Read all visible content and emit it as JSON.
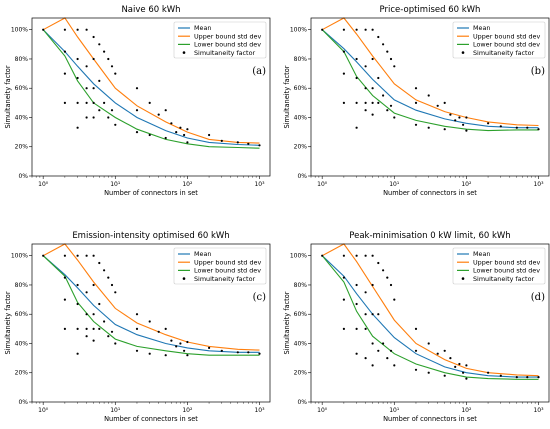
{
  "chart_data": [
    {
      "type": "line",
      "title": "Naive 60 kWh",
      "panel_label": "(a)",
      "xlabel": "Number of connectors in set",
      "ylabel": "Simultaneity factor",
      "xscale": "log",
      "xlim": [
        0.7,
        1400
      ],
      "ylim": [
        0,
        1.08
      ],
      "x_ticks": [
        1,
        10,
        100,
        1000
      ],
      "x_tick_labels": [
        "10⁰",
        "10¹",
        "10²",
        "10³"
      ],
      "y_ticks": [
        0,
        0.2,
        0.4,
        0.6,
        0.8,
        1.0
      ],
      "y_tick_labels": [
        "0%",
        "20%",
        "40%",
        "60%",
        "80%",
        "100%"
      ],
      "legend_position": "top-right",
      "series": [
        {
          "name": "Mean",
          "color": "#1f77b4",
          "x": [
            1,
            2,
            3,
            5,
            10,
            20,
            50,
            100,
            200,
            500,
            1000
          ],
          "y": [
            1.0,
            0.85,
            0.75,
            0.63,
            0.5,
            0.4,
            0.31,
            0.26,
            0.23,
            0.215,
            0.21
          ]
        },
        {
          "name": "Upper bound std dev",
          "color": "#ff7f0e",
          "x": [
            1,
            2,
            3,
            5,
            10,
            20,
            50,
            100,
            200,
            500,
            1000
          ],
          "y": [
            1.0,
            1.08,
            0.95,
            0.8,
            0.6,
            0.48,
            0.37,
            0.3,
            0.25,
            0.23,
            0.225
          ]
        },
        {
          "name": "Lower bound std dev",
          "color": "#2ca02c",
          "x": [
            1,
            2,
            3,
            5,
            10,
            20,
            50,
            100,
            200,
            500,
            1000
          ],
          "y": [
            1.0,
            0.82,
            0.65,
            0.5,
            0.4,
            0.32,
            0.25,
            0.22,
            0.2,
            0.195,
            0.19
          ]
        },
        {
          "name": "Simultaneity factor",
          "type": "scatter",
          "color": "#000000",
          "x": [
            1,
            2,
            2,
            2,
            2,
            3,
            3,
            3,
            3,
            3,
            4,
            4,
            4,
            4,
            4,
            5,
            5,
            5,
            5,
            5,
            6,
            6,
            6,
            7,
            7,
            8,
            8,
            9,
            9,
            10,
            10,
            20,
            20,
            20,
            30,
            30,
            40,
            50,
            50,
            60,
            70,
            80,
            90,
            100,
            100,
            200,
            300,
            500,
            700,
            1000
          ],
          "y": [
            1.0,
            1.0,
            0.85,
            0.7,
            0.5,
            1.0,
            0.8,
            0.67,
            0.5,
            0.33,
            1.0,
            0.75,
            0.6,
            0.5,
            0.4,
            0.95,
            0.8,
            0.6,
            0.5,
            0.4,
            0.9,
            0.65,
            0.45,
            0.85,
            0.5,
            0.8,
            0.4,
            0.75,
            0.45,
            0.7,
            0.35,
            0.6,
            0.45,
            0.3,
            0.5,
            0.28,
            0.42,
            0.45,
            0.26,
            0.36,
            0.3,
            0.33,
            0.28,
            0.32,
            0.23,
            0.28,
            0.24,
            0.23,
            0.22,
            0.21
          ]
        }
      ]
    },
    {
      "type": "line",
      "title": "Price-optimised 60 kWh",
      "panel_label": "(b)",
      "xlabel": "Number of connectors in set",
      "ylabel": "Simultaneity factor",
      "xscale": "log",
      "xlim": [
        0.7,
        1400
      ],
      "ylim": [
        0,
        1.08
      ],
      "x_ticks": [
        1,
        10,
        100,
        1000
      ],
      "x_tick_labels": [
        "10⁰",
        "10¹",
        "10²",
        "10³"
      ],
      "y_ticks": [
        0,
        0.2,
        0.4,
        0.6,
        0.8,
        1.0
      ],
      "y_tick_labels": [
        "0%",
        "20%",
        "40%",
        "60%",
        "80%",
        "100%"
      ],
      "legend_position": "top-right",
      "series": [
        {
          "name": "Mean",
          "color": "#1f77b4",
          "x": [
            1,
            2,
            3,
            5,
            10,
            20,
            50,
            100,
            200,
            500,
            1000
          ],
          "y": [
            1.0,
            0.87,
            0.78,
            0.66,
            0.52,
            0.45,
            0.39,
            0.36,
            0.34,
            0.33,
            0.33
          ]
        },
        {
          "name": "Upper bound std dev",
          "color": "#ff7f0e",
          "x": [
            1,
            2,
            3,
            5,
            10,
            20,
            50,
            100,
            200,
            500,
            1000
          ],
          "y": [
            1.0,
            1.08,
            0.97,
            0.82,
            0.63,
            0.52,
            0.44,
            0.4,
            0.37,
            0.35,
            0.345
          ]
        },
        {
          "name": "Lower bound std dev",
          "color": "#2ca02c",
          "x": [
            1,
            2,
            3,
            5,
            10,
            20,
            50,
            100,
            200,
            500,
            1000
          ],
          "y": [
            1.0,
            0.85,
            0.68,
            0.55,
            0.43,
            0.38,
            0.34,
            0.32,
            0.31,
            0.315,
            0.315
          ]
        },
        {
          "name": "Simultaneity factor",
          "type": "scatter",
          "color": "#000000",
          "x": [
            1,
            2,
            2,
            2,
            2,
            3,
            3,
            3,
            3,
            3,
            4,
            4,
            4,
            4,
            4,
            5,
            5,
            5,
            5,
            5,
            6,
            6,
            6,
            7,
            7,
            8,
            8,
            9,
            9,
            10,
            10,
            20,
            20,
            20,
            30,
            30,
            40,
            50,
            50,
            60,
            70,
            80,
            90,
            100,
            100,
            200,
            300,
            500,
            700,
            1000
          ],
          "y": [
            1.0,
            1.0,
            0.85,
            0.7,
            0.5,
            1.0,
            0.8,
            0.67,
            0.5,
            0.33,
            1.0,
            0.75,
            0.6,
            0.5,
            0.45,
            1.0,
            0.8,
            0.6,
            0.5,
            0.42,
            0.95,
            0.67,
            0.5,
            0.9,
            0.55,
            0.85,
            0.45,
            0.8,
            0.48,
            0.75,
            0.4,
            0.6,
            0.5,
            0.35,
            0.55,
            0.33,
            0.48,
            0.5,
            0.32,
            0.42,
            0.38,
            0.4,
            0.35,
            0.4,
            0.31,
            0.36,
            0.34,
            0.33,
            0.33,
            0.32
          ]
        }
      ]
    },
    {
      "type": "line",
      "title": "Emission-intensity optimised 60 kWh",
      "panel_label": "(c)",
      "xlabel": "Number of connectors in set",
      "ylabel": "Simultaneity factor",
      "xscale": "log",
      "xlim": [
        0.7,
        1400
      ],
      "ylim": [
        0,
        1.08
      ],
      "x_ticks": [
        1,
        10,
        100,
        1000
      ],
      "x_tick_labels": [
        "10⁰",
        "10¹",
        "10²",
        "10³"
      ],
      "y_ticks": [
        0,
        0.2,
        0.4,
        0.6,
        0.8,
        1.0
      ],
      "y_tick_labels": [
        "0%",
        "20%",
        "40%",
        "60%",
        "80%",
        "100%"
      ],
      "legend_position": "top-right",
      "series": [
        {
          "name": "Mean",
          "color": "#1f77b4",
          "x": [
            1,
            2,
            3,
            5,
            10,
            20,
            50,
            100,
            200,
            500,
            1000
          ],
          "y": [
            1.0,
            0.87,
            0.78,
            0.66,
            0.53,
            0.46,
            0.4,
            0.37,
            0.35,
            0.34,
            0.34
          ]
        },
        {
          "name": "Upper bound std dev",
          "color": "#ff7f0e",
          "x": [
            1,
            2,
            3,
            5,
            10,
            20,
            50,
            100,
            200,
            500,
            1000
          ],
          "y": [
            1.0,
            1.08,
            0.97,
            0.82,
            0.64,
            0.54,
            0.46,
            0.41,
            0.38,
            0.36,
            0.355
          ]
        },
        {
          "name": "Lower bound std dev",
          "color": "#2ca02c",
          "x": [
            1,
            2,
            3,
            5,
            10,
            20,
            50,
            100,
            200,
            500,
            1000
          ],
          "y": [
            1.0,
            0.86,
            0.68,
            0.55,
            0.43,
            0.38,
            0.35,
            0.33,
            0.32,
            0.32,
            0.32
          ]
        },
        {
          "name": "Simultaneity factor",
          "type": "scatter",
          "color": "#000000",
          "x": [
            1,
            2,
            2,
            2,
            2,
            3,
            3,
            3,
            3,
            3,
            4,
            4,
            4,
            4,
            4,
            5,
            5,
            5,
            5,
            5,
            6,
            6,
            6,
            7,
            7,
            8,
            8,
            9,
            9,
            10,
            10,
            20,
            20,
            20,
            30,
            30,
            40,
            50,
            50,
            60,
            70,
            80,
            90,
            100,
            100,
            200,
            300,
            500,
            700,
            1000
          ],
          "y": [
            1.0,
            1.0,
            0.85,
            0.7,
            0.5,
            1.0,
            0.8,
            0.67,
            0.5,
            0.33,
            1.0,
            0.75,
            0.6,
            0.5,
            0.45,
            1.0,
            0.8,
            0.6,
            0.5,
            0.42,
            0.95,
            0.67,
            0.5,
            0.9,
            0.55,
            0.85,
            0.45,
            0.8,
            0.48,
            0.75,
            0.4,
            0.6,
            0.5,
            0.35,
            0.55,
            0.33,
            0.48,
            0.5,
            0.32,
            0.42,
            0.38,
            0.4,
            0.35,
            0.41,
            0.32,
            0.37,
            0.35,
            0.34,
            0.34,
            0.33
          ]
        }
      ]
    },
    {
      "type": "line",
      "title": "Peak-minimisation 0 kW limit, 60 kWh",
      "panel_label": "(d)",
      "xlabel": "Number of connectors in set",
      "ylabel": "Simultaneity factor",
      "xscale": "log",
      "xlim": [
        0.7,
        1400
      ],
      "ylim": [
        0,
        1.08
      ],
      "x_ticks": [
        1,
        10,
        100,
        1000
      ],
      "x_tick_labels": [
        "10⁰",
        "10¹",
        "10²",
        "10³"
      ],
      "y_ticks": [
        0,
        0.2,
        0.4,
        0.6,
        0.8,
        1.0
      ],
      "y_tick_labels": [
        "0%",
        "20%",
        "40%",
        "60%",
        "80%",
        "100%"
      ],
      "legend_position": "top-right",
      "series": [
        {
          "name": "Mean",
          "color": "#1f77b4",
          "x": [
            1,
            2,
            3,
            5,
            10,
            20,
            50,
            100,
            200,
            500,
            1000
          ],
          "y": [
            1.0,
            0.86,
            0.74,
            0.6,
            0.44,
            0.33,
            0.24,
            0.2,
            0.18,
            0.17,
            0.17
          ]
        },
        {
          "name": "Upper bound std dev",
          "color": "#ff7f0e",
          "x": [
            1,
            2,
            3,
            5,
            10,
            20,
            50,
            100,
            200,
            500,
            1000
          ],
          "y": [
            1.0,
            1.08,
            0.96,
            0.79,
            0.56,
            0.4,
            0.29,
            0.23,
            0.2,
            0.185,
            0.18
          ]
        },
        {
          "name": "Lower bound std dev",
          "color": "#2ca02c",
          "x": [
            1,
            2,
            3,
            5,
            10,
            20,
            50,
            100,
            200,
            500,
            1000
          ],
          "y": [
            1.0,
            0.82,
            0.62,
            0.45,
            0.33,
            0.26,
            0.2,
            0.17,
            0.16,
            0.155,
            0.155
          ]
        },
        {
          "name": "Simultaneity factor",
          "type": "scatter",
          "color": "#000000",
          "x": [
            1,
            2,
            2,
            2,
            2,
            3,
            3,
            3,
            3,
            3,
            4,
            4,
            4,
            4,
            4,
            5,
            5,
            5,
            5,
            5,
            6,
            6,
            6,
            7,
            7,
            8,
            8,
            9,
            9,
            10,
            10,
            20,
            20,
            20,
            30,
            30,
            40,
            50,
            50,
            60,
            70,
            80,
            90,
            100,
            100,
            200,
            300,
            500,
            700,
            1000
          ],
          "y": [
            1.0,
            1.0,
            0.85,
            0.7,
            0.5,
            1.0,
            0.8,
            0.67,
            0.5,
            0.33,
            1.0,
            0.75,
            0.6,
            0.5,
            0.3,
            1.0,
            0.8,
            0.6,
            0.4,
            0.25,
            0.95,
            0.6,
            0.35,
            0.9,
            0.4,
            0.85,
            0.3,
            0.8,
            0.35,
            0.7,
            0.25,
            0.5,
            0.35,
            0.22,
            0.4,
            0.2,
            0.33,
            0.35,
            0.18,
            0.3,
            0.24,
            0.26,
            0.2,
            0.25,
            0.16,
            0.2,
            0.18,
            0.17,
            0.17,
            0.17
          ]
        }
      ]
    }
  ]
}
